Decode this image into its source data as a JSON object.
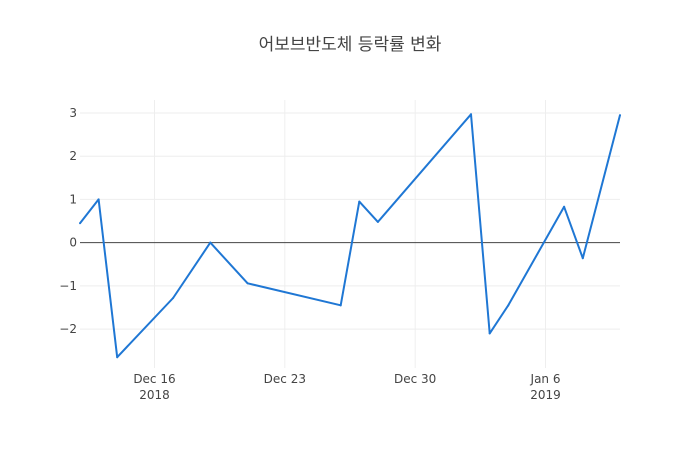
{
  "chart_data": {
    "type": "line",
    "title": "어보브반도체 등락률 변화",
    "xlabel": "",
    "ylabel": "",
    "x_axis": {
      "type": "date",
      "range": [
        "2018-12-12",
        "2019-01-10"
      ],
      "ticks": [
        {
          "date": "2018-12-16",
          "label": "Dec 16",
          "sublabel": "2018"
        },
        {
          "date": "2018-12-23",
          "label": "Dec 23",
          "sublabel": ""
        },
        {
          "date": "2018-12-30",
          "label": "Dec 30",
          "sublabel": ""
        },
        {
          "date": "2019-01-06",
          "label": "Jan 6",
          "sublabel": "2019"
        }
      ]
    },
    "y_axis": {
      "range": [
        -2.9,
        3.3
      ],
      "ticks": [
        {
          "value": 3,
          "label": "3"
        },
        {
          "value": 2,
          "label": "2"
        },
        {
          "value": 1,
          "label": "1"
        },
        {
          "value": 0,
          "label": "0"
        },
        {
          "value": -1,
          "label": "−1"
        },
        {
          "value": -2,
          "label": "−2"
        }
      ]
    },
    "grid": true,
    "zero_line": true,
    "series": [
      {
        "color": "#1f77d4",
        "points": [
          {
            "x": "2018-12-12",
            "y": 0.45
          },
          {
            "x": "2018-12-13",
            "y": 1.0
          },
          {
            "x": "2018-12-14",
            "y": -2.65
          },
          {
            "x": "2018-12-17",
            "y": -1.28
          },
          {
            "x": "2018-12-19",
            "y": 0.0
          },
          {
            "x": "2018-12-21",
            "y": -0.94
          },
          {
            "x": "2018-12-26",
            "y": -1.45
          },
          {
            "x": "2018-12-27",
            "y": 0.95
          },
          {
            "x": "2018-12-28",
            "y": 0.48
          },
          {
            "x": "2019-01-02",
            "y": 2.97
          },
          {
            "x": "2019-01-03",
            "y": -2.1
          },
          {
            "x": "2019-01-04",
            "y": -1.45
          },
          {
            "x": "2019-01-07",
            "y": 0.83
          },
          {
            "x": "2019-01-08",
            "y": -0.36
          },
          {
            "x": "2019-01-10",
            "y": 2.95
          }
        ]
      }
    ]
  }
}
